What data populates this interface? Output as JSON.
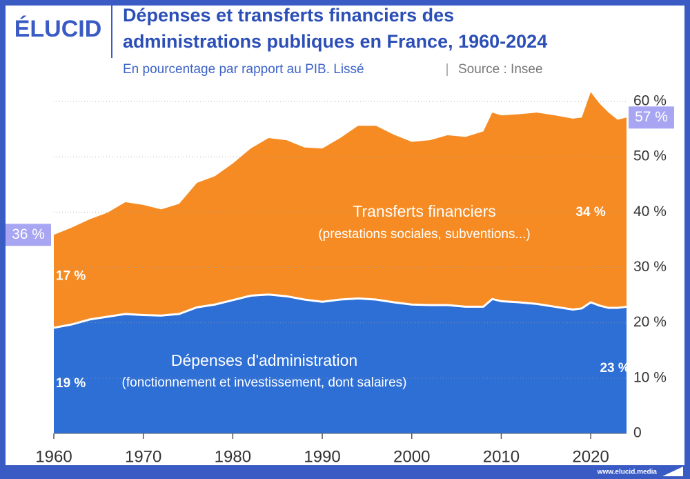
{
  "brand": "ÉLUCID",
  "footer": "www.elucid.media",
  "chart_data": {
    "type": "stacked-area",
    "title": [
      "Dépenses et transferts financiers des",
      "administrations publiques en France, 1960-2024"
    ],
    "subtitle": "En pourcentage par rapport au PIB. Lissé",
    "source": "Source : Insee",
    "x": [
      1960,
      1962,
      1964,
      1966,
      1968,
      1970,
      1972,
      1974,
      1976,
      1978,
      1980,
      1982,
      1984,
      1986,
      1988,
      1990,
      1992,
      1994,
      1996,
      1998,
      2000,
      2002,
      2004,
      2006,
      2008,
      2009,
      2010,
      2012,
      2014,
      2016,
      2018,
      2019,
      2020,
      2021,
      2022,
      2023,
      2024
    ],
    "series": [
      {
        "name": "Dépenses d'administration",
        "note": "(fonctionnement et investissement, dont salaires)",
        "color": "#2e6fd6",
        "values": [
          19.1,
          19.7,
          20.6,
          21.1,
          21.6,
          21.4,
          21.3,
          21.6,
          22.8,
          23.3,
          24.1,
          24.9,
          25.1,
          24.8,
          24.2,
          23.8,
          24.2,
          24.4,
          24.2,
          23.7,
          23.3,
          23.2,
          23.2,
          22.9,
          22.9,
          24.3,
          23.9,
          23.7,
          23.4,
          22.9,
          22.4,
          22.6,
          23.7,
          23.1,
          22.7,
          22.7,
          22.9
        ]
      },
      {
        "name": "Transferts financiers",
        "note": "(prestations sociales, subventions...)",
        "color": "#f68b23",
        "values": [
          16.8,
          17.5,
          18.1,
          18.8,
          20.2,
          19.9,
          19.2,
          19.9,
          22.5,
          23.2,
          24.7,
          26.6,
          28.3,
          28.2,
          27.5,
          27.7,
          29.2,
          31.2,
          31.4,
          30.3,
          29.4,
          29.8,
          30.7,
          30.7,
          31.7,
          33.7,
          33.6,
          34.0,
          34.6,
          34.6,
          34.5,
          34.5,
          38.0,
          36.5,
          35.3,
          34.0,
          34.2
        ]
      }
    ],
    "annotations": [
      {
        "text": "19 %",
        "x": 1960,
        "y": 9
      },
      {
        "text": "17 %",
        "x": 1960,
        "y": 28.4
      },
      {
        "text": "34 %",
        "x": 2020,
        "y": 39.9
      },
      {
        "text": "23 %",
        "x": 2022.7,
        "y": 11.7
      }
    ],
    "total_labels": [
      {
        "text": "36 %",
        "x": 1960,
        "y": 35.9
      },
      {
        "text": "57 %",
        "x": 2024,
        "y": 57.1
      }
    ],
    "xlim": [
      1960,
      2024
    ],
    "xticks": [
      1960,
      1970,
      1980,
      1990,
      2000,
      2010,
      2020
    ],
    "ylim": [
      0,
      62
    ],
    "yticks": [
      0,
      {
        "value": 10,
        "label": "10 %"
      },
      {
        "value": 20,
        "label": "20 %"
      },
      {
        "value": 30,
        "label": "30 %"
      },
      {
        "value": 40,
        "label": "40 %"
      },
      {
        "value": 50,
        "label": "50 %"
      },
      {
        "value": 60,
        "label": "60 %"
      }
    ],
    "grid": true
  }
}
